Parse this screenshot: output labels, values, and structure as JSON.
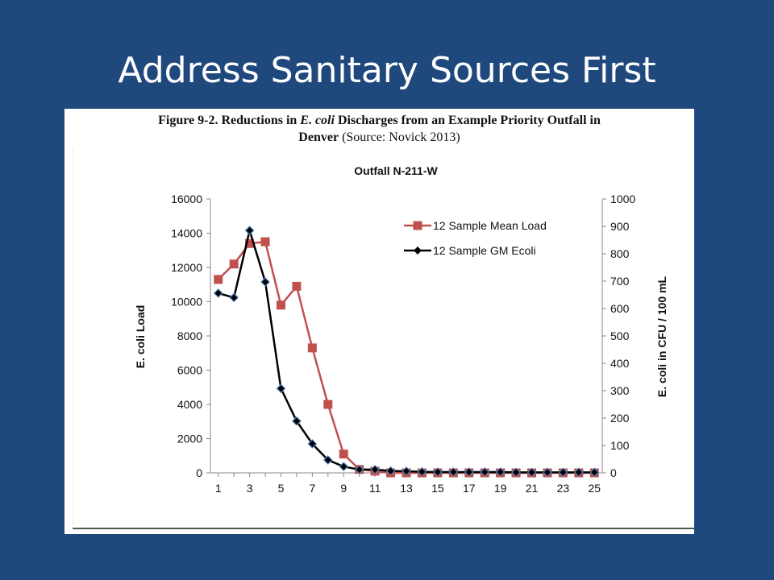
{
  "slide": {
    "title": "Address Sanitary Sources First"
  },
  "figure": {
    "caption_line1_a": "Figure 9-2. Reductions in ",
    "caption_line1_em": "E. coli",
    "caption_line1_b": " Discharges from an Example Priority Outfall in",
    "caption_line2_bold": "Denver",
    "caption_line2_source": " (Source: Novick 2013)"
  },
  "chart_data": {
    "type": "line",
    "title": "Outfall N-211-W",
    "ylabel": "E. coli Load",
    "y2label": "E. coli in CFU / 100 mL",
    "x": [
      1,
      2,
      3,
      4,
      5,
      6,
      7,
      8,
      9,
      10,
      11,
      12,
      13,
      14,
      15,
      16,
      17,
      18,
      19,
      20,
      21,
      22,
      23,
      24,
      25
    ],
    "xticks": [
      1,
      3,
      5,
      7,
      9,
      11,
      13,
      15,
      17,
      19,
      21,
      23,
      25
    ],
    "xlim": [
      0.5,
      25.5
    ],
    "ylim": [
      0,
      16000
    ],
    "yticks": [
      0,
      2000,
      4000,
      6000,
      8000,
      10000,
      12000,
      14000,
      16000
    ],
    "y2lim": [
      0,
      1000
    ],
    "y2ticks": [
      0,
      100,
      200,
      300,
      400,
      500,
      600,
      700,
      800,
      900,
      1000
    ],
    "legend_position": "top-right",
    "grid": false,
    "series": [
      {
        "name": "12 Sample Mean Load",
        "axis": "left",
        "color": "#c0504d",
        "marker": "square",
        "values": [
          11300,
          12200,
          13400,
          13500,
          9800,
          10900,
          7300,
          4000,
          1100,
          200,
          100,
          0,
          0,
          0,
          0,
          0,
          0,
          0,
          0,
          0,
          0,
          0,
          0,
          0,
          0
        ]
      },
      {
        "name": "12 Sample GM Ecoli",
        "axis": "right",
        "color": "#000000",
        "marker": "diamond",
        "values": [
          656,
          640,
          885,
          697,
          308,
          189,
          106,
          47,
          23,
          12,
          12,
          7,
          6,
          4,
          3,
          3,
          3,
          3,
          3,
          2,
          2,
          2,
          2,
          2,
          2
        ]
      }
    ]
  }
}
